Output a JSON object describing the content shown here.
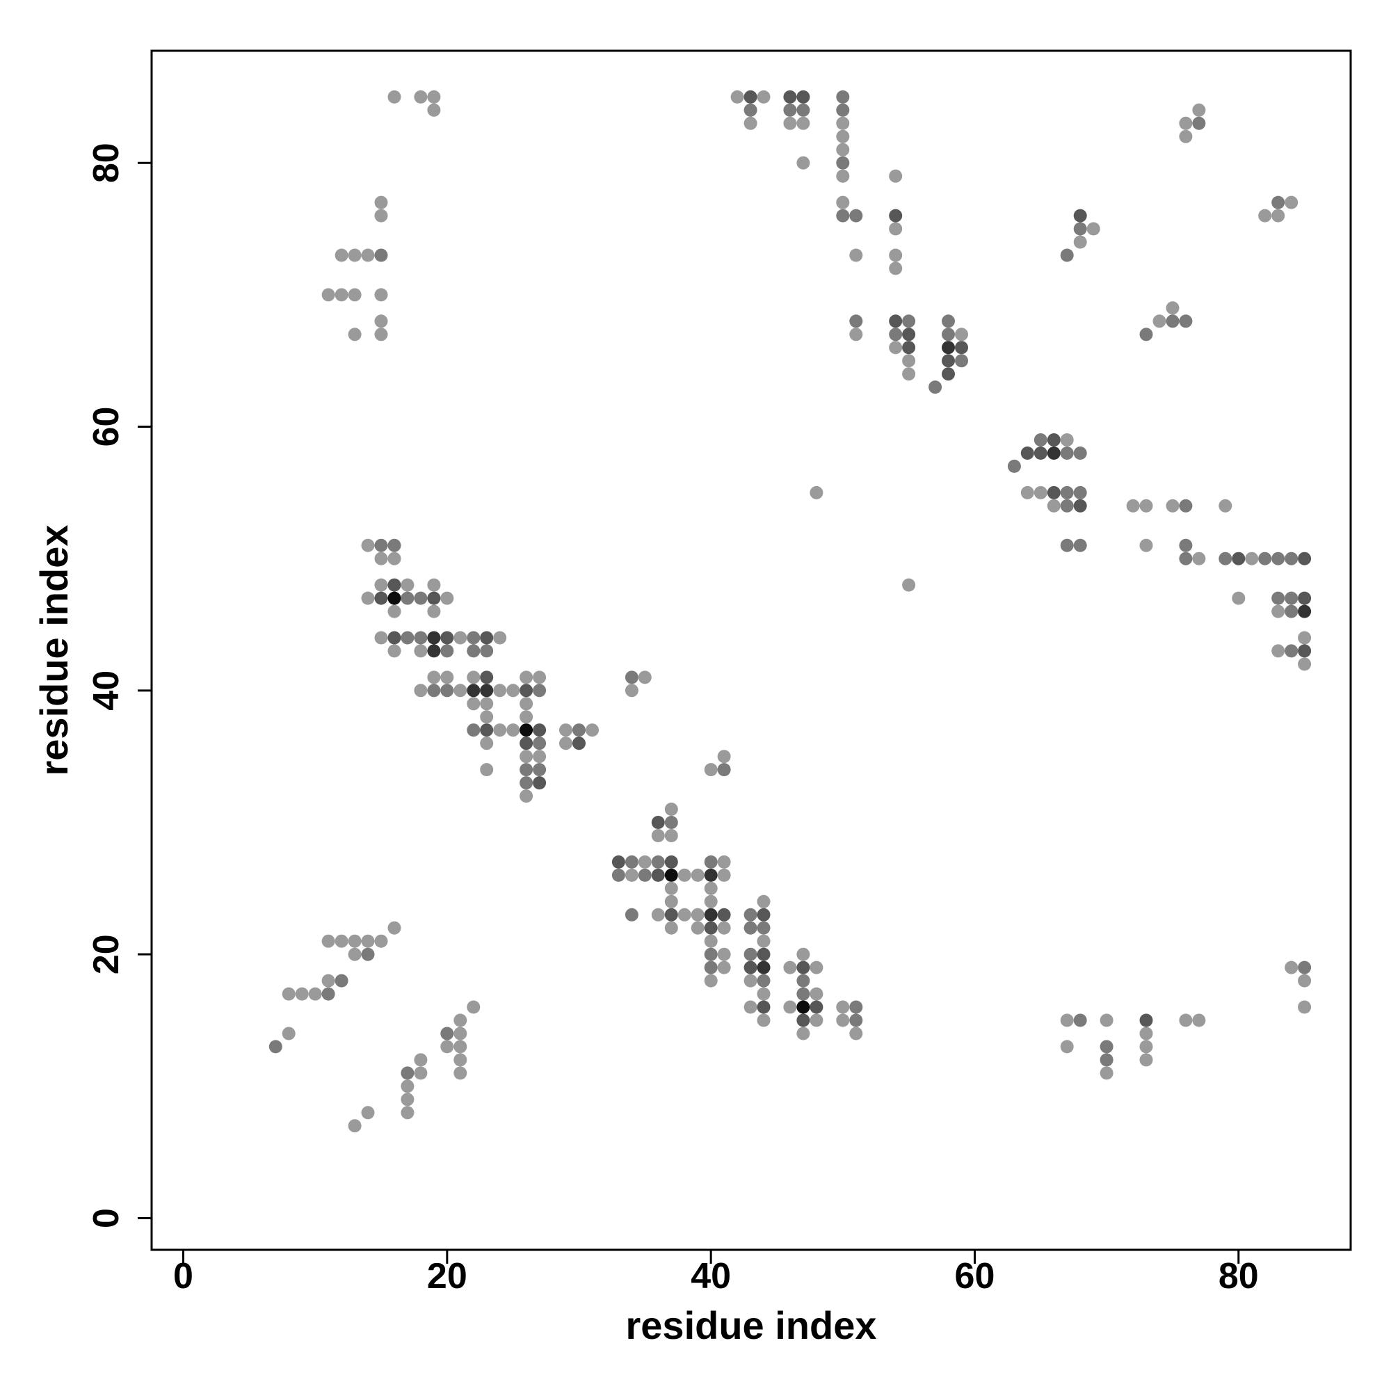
{
  "chart_data": {
    "type": "scatter",
    "title": "",
    "xlabel": "residue index",
    "ylabel": "residue index",
    "xlim": [
      -2.4,
      88.5
    ],
    "ylim": [
      -2.4,
      88.5
    ],
    "x_ticks": [
      0,
      20,
      40,
      60,
      80
    ],
    "y_ticks": [
      0,
      20,
      40,
      60,
      80
    ],
    "grid": false,
    "legend": "none",
    "colors": {
      "1": "#9a9a9a",
      "2": "#7a7a7a",
      "3": "#575757",
      "4": "#333333",
      "5": "#0d0d0d"
    },
    "points": [
      [
        7,
        13,
        2
      ],
      [
        8,
        14,
        1
      ],
      [
        8,
        17,
        1
      ],
      [
        9,
        17,
        1
      ],
      [
        10,
        17,
        1
      ],
      [
        11,
        17,
        2
      ],
      [
        11,
        18,
        1
      ],
      [
        12,
        18,
        2
      ],
      [
        11,
        21,
        1
      ],
      [
        12,
        21,
        1
      ],
      [
        13,
        21,
        1
      ],
      [
        14,
        21,
        1
      ],
      [
        15,
        21,
        1
      ],
      [
        13,
        20,
        1
      ],
      [
        14,
        20,
        2
      ],
      [
        16,
        22,
        1
      ],
      [
        13,
        7,
        1
      ],
      [
        14,
        8,
        1
      ],
      [
        17,
        8,
        1
      ],
      [
        17,
        9,
        1
      ],
      [
        17,
        10,
        1
      ],
      [
        17,
        11,
        2
      ],
      [
        18,
        11,
        1
      ],
      [
        18,
        12,
        1
      ],
      [
        20,
        13,
        1
      ],
      [
        20,
        14,
        2
      ],
      [
        21,
        14,
        1
      ],
      [
        21,
        13,
        1
      ],
      [
        21,
        15,
        1
      ],
      [
        21,
        12,
        1
      ],
      [
        21,
        11,
        1
      ],
      [
        22,
        16,
        1
      ],
      [
        33,
        26,
        2
      ],
      [
        34,
        26,
        1
      ],
      [
        35,
        26,
        2
      ],
      [
        36,
        26,
        3
      ],
      [
        37,
        26,
        5
      ],
      [
        38,
        26,
        1
      ],
      [
        39,
        26,
        1
      ],
      [
        40,
        26,
        4
      ],
      [
        41,
        26,
        1
      ],
      [
        33,
        27,
        3
      ],
      [
        34,
        27,
        2
      ],
      [
        35,
        27,
        1
      ],
      [
        36,
        27,
        2
      ],
      [
        37,
        27,
        3
      ],
      [
        40,
        27,
        2
      ],
      [
        41,
        27,
        1
      ],
      [
        34,
        23,
        2
      ],
      [
        36,
        23,
        1
      ],
      [
        37,
        23,
        3
      ],
      [
        38,
        23,
        1
      ],
      [
        39,
        23,
        1
      ],
      [
        40,
        23,
        4
      ],
      [
        41,
        23,
        3
      ],
      [
        37,
        22,
        1
      ],
      [
        39,
        22,
        1
      ],
      [
        40,
        22,
        3
      ],
      [
        41,
        22,
        1
      ],
      [
        37,
        25,
        1
      ],
      [
        37,
        24,
        1
      ],
      [
        40,
        25,
        1
      ],
      [
        40,
        24,
        1
      ],
      [
        36,
        29,
        1
      ],
      [
        36,
        30,
        3
      ],
      [
        37,
        30,
        2
      ],
      [
        37,
        29,
        1
      ],
      [
        37,
        31,
        1
      ],
      [
        40,
        21,
        1
      ],
      [
        40,
        20,
        2
      ],
      [
        41,
        20,
        1
      ],
      [
        40,
        19,
        2
      ],
      [
        41,
        19,
        1
      ],
      [
        40,
        18,
        1
      ],
      [
        43,
        23,
        2
      ],
      [
        44,
        23,
        3
      ],
      [
        43,
        22,
        2
      ],
      [
        44,
        22,
        2
      ],
      [
        44,
        21,
        1
      ],
      [
        43,
        20,
        2
      ],
      [
        44,
        20,
        3
      ],
      [
        43,
        19,
        3
      ],
      [
        44,
        19,
        4
      ],
      [
        43,
        18,
        1
      ],
      [
        44,
        18,
        2
      ],
      [
        44,
        17,
        1
      ],
      [
        43,
        16,
        1
      ],
      [
        44,
        16,
        3
      ],
      [
        44,
        15,
        1
      ],
      [
        44,
        24,
        1
      ],
      [
        46,
        19,
        1
      ],
      [
        47,
        19,
        3
      ],
      [
        48,
        19,
        1
      ],
      [
        47,
        20,
        1
      ],
      [
        47,
        18,
        2
      ],
      [
        47,
        17,
        2
      ],
      [
        48,
        17,
        1
      ],
      [
        46,
        16,
        1
      ],
      [
        47,
        16,
        5
      ],
      [
        48,
        16,
        3
      ],
      [
        47,
        15,
        3
      ],
      [
        48,
        15,
        1
      ],
      [
        47,
        14,
        1
      ],
      [
        50,
        16,
        1
      ],
      [
        51,
        16,
        2
      ],
      [
        50,
        15,
        1
      ],
      [
        51,
        15,
        2
      ],
      [
        51,
        14,
        1
      ],
      [
        15,
        51,
        2
      ],
      [
        16,
        51,
        2
      ],
      [
        14,
        51,
        1
      ],
      [
        15,
        50,
        1
      ],
      [
        16,
        50,
        1
      ],
      [
        15,
        48,
        1
      ],
      [
        16,
        48,
        3
      ],
      [
        17,
        48,
        1
      ],
      [
        14,
        47,
        1
      ],
      [
        15,
        47,
        3
      ],
      [
        16,
        47,
        5
      ],
      [
        17,
        47,
        2
      ],
      [
        18,
        47,
        2
      ],
      [
        19,
        47,
        3
      ],
      [
        20,
        47,
        1
      ],
      [
        16,
        46,
        1
      ],
      [
        19,
        48,
        1
      ],
      [
        19,
        46,
        1
      ],
      [
        15,
        44,
        1
      ],
      [
        16,
        44,
        3
      ],
      [
        17,
        44,
        2
      ],
      [
        18,
        44,
        2
      ],
      [
        19,
        44,
        4
      ],
      [
        20,
        44,
        3
      ],
      [
        21,
        44,
        1
      ],
      [
        22,
        44,
        2
      ],
      [
        23,
        44,
        3
      ],
      [
        24,
        44,
        1
      ],
      [
        16,
        43,
        1
      ],
      [
        18,
        43,
        1
      ],
      [
        19,
        43,
        4
      ],
      [
        20,
        43,
        2
      ],
      [
        22,
        43,
        2
      ],
      [
        23,
        43,
        2
      ],
      [
        18,
        40,
        1
      ],
      [
        19,
        40,
        2
      ],
      [
        20,
        40,
        2
      ],
      [
        21,
        40,
        1
      ],
      [
        22,
        40,
        4
      ],
      [
        23,
        40,
        4
      ],
      [
        24,
        40,
        1
      ],
      [
        25,
        40,
        1
      ],
      [
        26,
        40,
        3
      ],
      [
        27,
        40,
        2
      ],
      [
        19,
        41,
        1
      ],
      [
        20,
        41,
        1
      ],
      [
        22,
        41,
        1
      ],
      [
        23,
        41,
        3
      ],
      [
        26,
        41,
        1
      ],
      [
        27,
        41,
        1
      ],
      [
        22,
        39,
        1
      ],
      [
        23,
        39,
        1
      ],
      [
        23,
        38,
        1
      ],
      [
        22,
        37,
        2
      ],
      [
        23,
        37,
        3
      ],
      [
        24,
        37,
        1
      ],
      [
        25,
        37,
        1
      ],
      [
        26,
        37,
        5
      ],
      [
        27,
        37,
        3
      ],
      [
        23,
        36,
        1
      ],
      [
        26,
        36,
        3
      ],
      [
        27,
        36,
        2
      ],
      [
        26,
        39,
        1
      ],
      [
        26,
        38,
        1
      ],
      [
        23,
        34,
        1
      ],
      [
        26,
        35,
        1
      ],
      [
        27,
        35,
        1
      ],
      [
        26,
        34,
        2
      ],
      [
        27,
        34,
        2
      ],
      [
        26,
        33,
        2
      ],
      [
        27,
        33,
        3
      ],
      [
        26,
        32,
        1
      ],
      [
        29,
        37,
        1
      ],
      [
        30,
        37,
        2
      ],
      [
        31,
        37,
        1
      ],
      [
        29,
        36,
        1
      ],
      [
        30,
        36,
        3
      ],
      [
        34,
        41,
        2
      ],
      [
        35,
        41,
        1
      ],
      [
        34,
        40,
        1
      ],
      [
        40,
        34,
        1
      ],
      [
        41,
        34,
        2
      ],
      [
        41,
        35,
        1
      ],
      [
        15,
        77,
        1
      ],
      [
        15,
        76,
        1
      ],
      [
        12,
        73,
        1
      ],
      [
        13,
        73,
        1
      ],
      [
        14,
        73,
        1
      ],
      [
        15,
        73,
        2
      ],
      [
        11,
        70,
        1
      ],
      [
        12,
        70,
        1
      ],
      [
        13,
        70,
        1
      ],
      [
        15,
        70,
        1
      ],
      [
        15,
        68,
        1
      ],
      [
        13,
        67,
        1
      ],
      [
        15,
        67,
        1
      ],
      [
        16,
        85,
        1
      ],
      [
        18,
        85,
        1
      ],
      [
        19,
        85,
        1
      ],
      [
        19,
        84,
        1
      ],
      [
        42,
        85,
        1
      ],
      [
        43,
        85,
        3
      ],
      [
        44,
        85,
        1
      ],
      [
        43,
        84,
        2
      ],
      [
        43,
        83,
        1
      ],
      [
        46,
        85,
        3
      ],
      [
        47,
        85,
        3
      ],
      [
        46,
        84,
        2
      ],
      [
        47,
        84,
        2
      ],
      [
        46,
        83,
        1
      ],
      [
        47,
        83,
        1
      ],
      [
        47,
        80,
        1
      ],
      [
        50,
        85,
        2
      ],
      [
        50,
        84,
        2
      ],
      [
        50,
        83,
        1
      ],
      [
        50,
        82,
        1
      ],
      [
        50,
        81,
        1
      ],
      [
        50,
        80,
        2
      ],
      [
        50,
        79,
        1
      ],
      [
        50,
        77,
        1
      ],
      [
        50,
        76,
        2
      ],
      [
        51,
        76,
        2
      ],
      [
        51,
        73,
        1
      ],
      [
        54,
        79,
        1
      ],
      [
        54,
        76,
        3
      ],
      [
        54,
        75,
        1
      ],
      [
        54,
        73,
        1
      ],
      [
        54,
        72,
        1
      ],
      [
        51,
        68,
        2
      ],
      [
        51,
        67,
        1
      ],
      [
        54,
        68,
        3
      ],
      [
        55,
        68,
        2
      ],
      [
        54,
        67,
        2
      ],
      [
        55,
        67,
        3
      ],
      [
        54,
        66,
        1
      ],
      [
        55,
        66,
        3
      ],
      [
        55,
        65,
        1
      ],
      [
        55,
        64,
        1
      ],
      [
        58,
        68,
        2
      ],
      [
        58,
        67,
        2
      ],
      [
        59,
        67,
        1
      ],
      [
        58,
        66,
        4
      ],
      [
        59,
        66,
        3
      ],
      [
        58,
        65,
        3
      ],
      [
        59,
        65,
        2
      ],
      [
        58,
        64,
        3
      ],
      [
        57,
        63,
        2
      ],
      [
        48,
        55,
        1
      ],
      [
        55,
        48,
        1
      ],
      [
        63,
        57,
        2
      ],
      [
        64,
        58,
        3
      ],
      [
        65,
        58,
        3
      ],
      [
        66,
        58,
        4
      ],
      [
        67,
        58,
        2
      ],
      [
        68,
        58,
        2
      ],
      [
        65,
        59,
        2
      ],
      [
        66,
        59,
        3
      ],
      [
        67,
        59,
        1
      ],
      [
        64,
        55,
        1
      ],
      [
        65,
        55,
        1
      ],
      [
        66,
        55,
        3
      ],
      [
        67,
        55,
        2
      ],
      [
        68,
        55,
        2
      ],
      [
        66,
        54,
        1
      ],
      [
        67,
        54,
        2
      ],
      [
        68,
        54,
        3
      ],
      [
        67,
        51,
        2
      ],
      [
        68,
        51,
        2
      ],
      [
        72,
        54,
        1
      ],
      [
        73,
        54,
        1
      ],
      [
        75,
        54,
        1
      ],
      [
        76,
        54,
        2
      ],
      [
        73,
        51,
        1
      ],
      [
        76,
        51,
        2
      ],
      [
        76,
        50,
        2
      ],
      [
        77,
        50,
        1
      ],
      [
        79,
        54,
        1
      ],
      [
        79,
        50,
        2
      ],
      [
        80,
        50,
        3
      ],
      [
        81,
        50,
        1
      ],
      [
        82,
        50,
        2
      ],
      [
        83,
        50,
        2
      ],
      [
        84,
        50,
        2
      ],
      [
        85,
        50,
        3
      ],
      [
        80,
        47,
        1
      ],
      [
        83,
        47,
        2
      ],
      [
        84,
        47,
        2
      ],
      [
        85,
        47,
        3
      ],
      [
        83,
        46,
        1
      ],
      [
        84,
        46,
        2
      ],
      [
        85,
        46,
        4
      ],
      [
        85,
        44,
        1
      ],
      [
        83,
        43,
        1
      ],
      [
        84,
        43,
        2
      ],
      [
        85,
        43,
        3
      ],
      [
        85,
        42,
        1
      ],
      [
        67,
        73,
        2
      ],
      [
        68,
        76,
        3
      ],
      [
        68,
        75,
        2
      ],
      [
        69,
        75,
        1
      ],
      [
        68,
        74,
        1
      ],
      [
        73,
        67,
        2
      ],
      [
        74,
        68,
        1
      ],
      [
        75,
        68,
        2
      ],
      [
        76,
        68,
        2
      ],
      [
        75,
        69,
        1
      ],
      [
        76,
        83,
        1
      ],
      [
        77,
        83,
        2
      ],
      [
        77,
        84,
        1
      ],
      [
        76,
        82,
        1
      ],
      [
        82,
        76,
        1
      ],
      [
        83,
        76,
        1
      ],
      [
        83,
        77,
        2
      ],
      [
        84,
        77,
        1
      ],
      [
        67,
        15,
        1
      ],
      [
        68,
        15,
        2
      ],
      [
        67,
        13,
        1
      ],
      [
        70,
        15,
        1
      ],
      [
        70,
        13,
        2
      ],
      [
        70,
        12,
        2
      ],
      [
        70,
        11,
        1
      ],
      [
        73,
        15,
        3
      ],
      [
        73,
        14,
        1
      ],
      [
        73,
        13,
        1
      ],
      [
        73,
        12,
        1
      ],
      [
        76,
        15,
        1
      ],
      [
        77,
        15,
        1
      ],
      [
        84,
        19,
        1
      ],
      [
        85,
        19,
        2
      ],
      [
        85,
        18,
        1
      ],
      [
        85,
        16,
        1
      ]
    ]
  }
}
